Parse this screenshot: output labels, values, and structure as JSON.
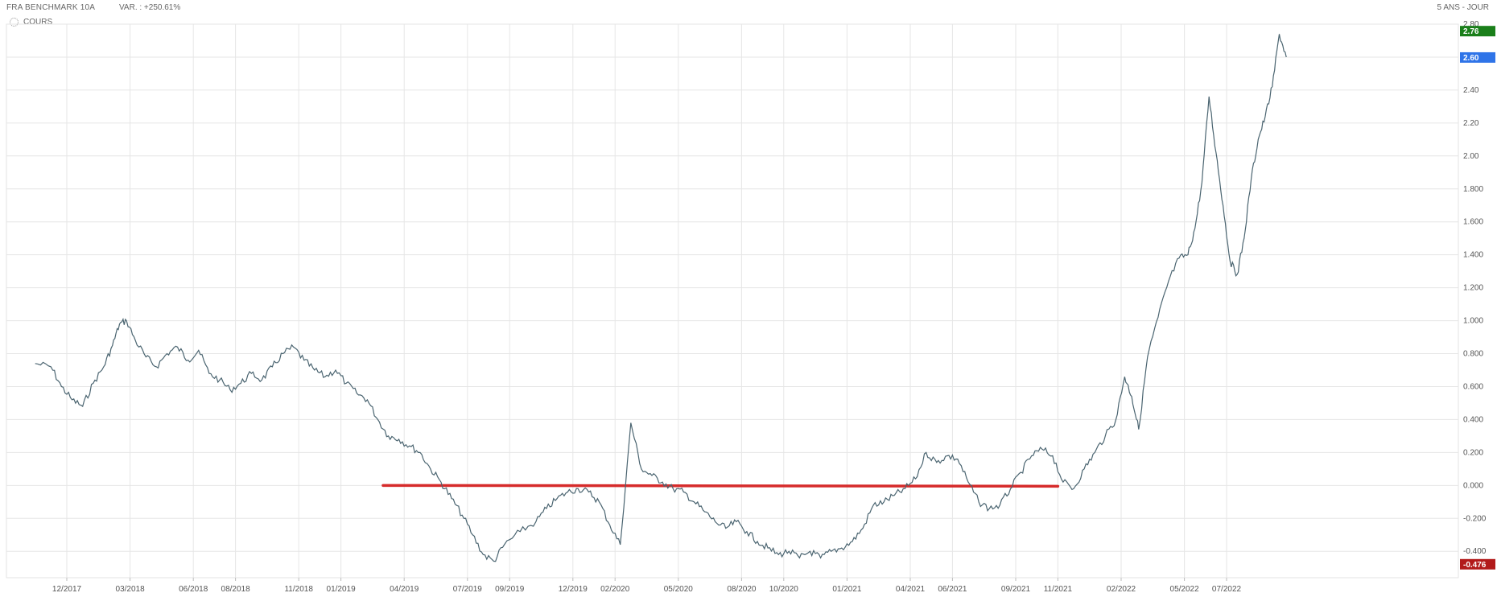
{
  "header": {
    "title": "FRA BENCHMARK 10A",
    "variation": "VAR. : +250.61%",
    "period": "5 ANS - JOUR"
  },
  "legend": {
    "label": "COURS",
    "icon": "settings-icon"
  },
  "chart_data": {
    "type": "line",
    "title": "FRA BENCHMARK 10A",
    "xlabel": "",
    "ylabel": "",
    "grid": true,
    "x_ticks": [
      "12/2017",
      "03/2018",
      "06/2018",
      "08/2018",
      "11/2018",
      "01/2019",
      "04/2019",
      "07/2019",
      "09/2019",
      "12/2019",
      "02/2020",
      "05/2020",
      "08/2020",
      "10/2020",
      "01/2021",
      "04/2021",
      "06/2021",
      "09/2021",
      "11/2021",
      "02/2022",
      "05/2022",
      "07/2022"
    ],
    "y_ticks": [
      "2.80",
      "2.60",
      "2.40",
      "2.20",
      "2.00",
      "1.800",
      "1.600",
      "1.400",
      "1.200",
      "1.000",
      "0.800",
      "0.600",
      "0.400",
      "0.200",
      "0.000",
      "-0.200",
      "-0.400"
    ],
    "ylim": [
      -0.56,
      2.8
    ],
    "series": [
      {
        "color": "#4a6470",
        "points": [
          [
            "10/2017",
            0.74
          ],
          [
            "11/2017",
            0.72
          ],
          [
            "11/2017",
            0.6
          ],
          [
            "12/2017",
            0.52
          ],
          [
            "12/2017",
            0.48
          ],
          [
            "01/2018",
            0.62
          ],
          [
            "01/2018",
            0.72
          ],
          [
            "02/2018",
            0.85
          ],
          [
            "02/2018",
            0.98
          ],
          [
            "02/2018",
            1.0
          ],
          [
            "03/2018",
            0.88
          ],
          [
            "03/2018",
            0.78
          ],
          [
            "04/2018",
            0.72
          ],
          [
            "04/2018",
            0.8
          ],
          [
            "05/2018",
            0.84
          ],
          [
            "05/2018",
            0.76
          ],
          [
            "06/2018",
            0.82
          ],
          [
            "06/2018",
            0.68
          ],
          [
            "07/2018",
            0.64
          ],
          [
            "07/2018",
            0.58
          ],
          [
            "08/2018",
            0.62
          ],
          [
            "08/2018",
            0.68
          ],
          [
            "09/2018",
            0.64
          ],
          [
            "09/2018",
            0.72
          ],
          [
            "10/2018",
            0.8
          ],
          [
            "10/2018",
            0.84
          ],
          [
            "11/2018",
            0.76
          ],
          [
            "11/2018",
            0.7
          ],
          [
            "12/2018",
            0.66
          ],
          [
            "12/2018",
            0.7
          ],
          [
            "01/2019",
            0.62
          ],
          [
            "01/2019",
            0.56
          ],
          [
            "02/2019",
            0.52
          ],
          [
            "02/2019",
            0.4
          ],
          [
            "03/2019",
            0.3
          ],
          [
            "03/2019",
            0.28
          ],
          [
            "04/2019",
            0.24
          ],
          [
            "04/2019",
            0.2
          ],
          [
            "05/2019",
            0.1
          ],
          [
            "05/2019",
            0.02
          ],
          [
            "06/2019",
            -0.08
          ],
          [
            "06/2019",
            -0.18
          ],
          [
            "07/2019",
            -0.3
          ],
          [
            "07/2019",
            -0.42
          ],
          [
            "08/2019",
            -0.46
          ],
          [
            "08/2019",
            -0.36
          ],
          [
            "09/2019",
            -0.28
          ],
          [
            "10/2019",
            -0.22
          ],
          [
            "10/2019",
            -0.14
          ],
          [
            "11/2019",
            -0.08
          ],
          [
            "11/2019",
            -0.04
          ],
          [
            "12/2019",
            -0.02
          ],
          [
            "12/2019",
            -0.04
          ],
          [
            "01/2020",
            -0.1
          ],
          [
            "01/2020",
            -0.24
          ],
          [
            "02/2020",
            -0.36
          ],
          [
            "02/2020",
            0.38
          ],
          [
            "03/2020",
            0.1
          ],
          [
            "03/2020",
            0.06
          ],
          [
            "04/2020",
            0.02
          ],
          [
            "04/2020",
            -0.02
          ],
          [
            "05/2020",
            -0.04
          ],
          [
            "05/2020",
            -0.1
          ],
          [
            "06/2020",
            -0.16
          ],
          [
            "06/2020",
            -0.22
          ],
          [
            "07/2020",
            -0.26
          ],
          [
            "07/2020",
            -0.22
          ],
          [
            "08/2020",
            -0.28
          ],
          [
            "08/2020",
            -0.34
          ],
          [
            "09/2020",
            -0.38
          ],
          [
            "09/2020",
            -0.42
          ],
          [
            "10/2020",
            -0.4
          ],
          [
            "10/2020",
            -0.44
          ],
          [
            "11/2020",
            -0.4
          ],
          [
            "11/2020",
            -0.44
          ],
          [
            "12/2020",
            -0.4
          ],
          [
            "12/2020",
            -0.38
          ],
          [
            "01/2021",
            -0.34
          ],
          [
            "01/2021",
            -0.26
          ],
          [
            "02/2021",
            -0.12
          ],
          [
            "02/2021",
            -0.1
          ],
          [
            "03/2021",
            -0.06
          ],
          [
            "03/2021",
            -0.02
          ],
          [
            "04/2021",
            0.04
          ],
          [
            "04/2021",
            0.2
          ],
          [
            "05/2021",
            0.14
          ],
          [
            "05/2021",
            0.18
          ],
          [
            "06/2021",
            0.16
          ],
          [
            "06/2021",
            0.02
          ],
          [
            "07/2021",
            -0.1
          ],
          [
            "07/2021",
            -0.14
          ],
          [
            "08/2021",
            -0.12
          ],
          [
            "08/2021",
            -0.02
          ],
          [
            "09/2021",
            0.08
          ],
          [
            "09/2021",
            0.18
          ],
          [
            "10/2021",
            0.22
          ],
          [
            "10/2021",
            0.18
          ],
          [
            "11/2021",
            0.02
          ],
          [
            "11/2021",
            -0.02
          ],
          [
            "12/2021",
            0.1
          ],
          [
            "12/2021",
            0.2
          ],
          [
            "01/2022",
            0.3
          ],
          [
            "01/2022",
            0.4
          ],
          [
            "02/2022",
            0.66
          ],
          [
            "02/2022",
            0.54
          ],
          [
            "02/2022",
            0.34
          ],
          [
            "03/2022",
            0.78
          ],
          [
            "03/2022",
            1.02
          ],
          [
            "04/2022",
            1.24
          ],
          [
            "04/2022",
            1.38
          ],
          [
            "05/2022",
            1.4
          ],
          [
            "05/2022",
            1.56
          ],
          [
            "05/2022",
            1.84
          ],
          [
            "06/2022",
            2.36
          ],
          [
            "06/2022",
            2.02
          ],
          [
            "06/2022",
            1.7
          ],
          [
            "07/2022",
            1.36
          ],
          [
            "07/2022",
            1.28
          ],
          [
            "07/2022",
            1.5
          ],
          [
            "08/2022",
            1.86
          ],
          [
            "08/2022",
            2.1
          ],
          [
            "08/2022",
            2.24
          ],
          [
            "09/2022",
            2.42
          ],
          [
            "09/2022",
            2.74
          ],
          [
            "09/2022",
            2.6
          ]
        ]
      }
    ],
    "annotations": {
      "support_line": {
        "y": 0.0,
        "from": "03/2019",
        "to": "11/2021",
        "color": "#d62b2b"
      },
      "labels": [
        {
          "value": "2.76",
          "color": "#1a7f1a"
        },
        {
          "value": "2.60",
          "color": "#2f74e8"
        },
        {
          "value": "-0.476",
          "color": "#b21a1a"
        }
      ]
    }
  }
}
